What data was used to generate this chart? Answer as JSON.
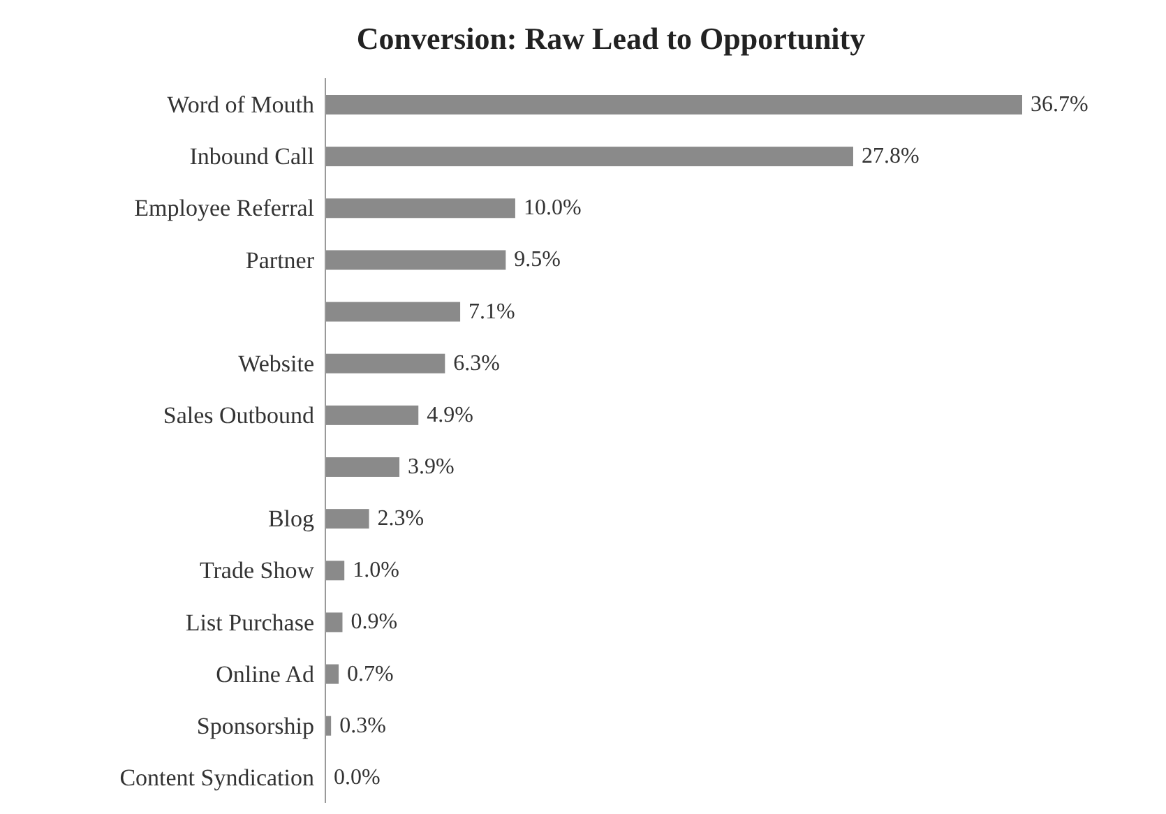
{
  "chart_data": {
    "type": "bar",
    "orientation": "horizontal",
    "title": "Conversion: Raw Lead to Opportunity",
    "categories": [
      "Word of Mouth",
      "Inbound Call",
      "Employee Referral",
      "Partner",
      null,
      "Website",
      "Sales Outbound",
      null,
      "Blog",
      "Trade Show",
      "List Purchase",
      "Online Ad",
      "Sponsorship",
      "Content Syndication"
    ],
    "values": [
      36.7,
      27.8,
      10.0,
      9.5,
      7.1,
      6.3,
      4.9,
      3.9,
      2.3,
      1.0,
      0.9,
      0.7,
      0.3,
      0.0
    ],
    "value_labels": [
      "36.7%",
      "27.8%",
      "10.0%",
      "9.5%",
      "7.1%",
      "6.3%",
      "4.9%",
      "3.9%",
      "2.3%",
      "1.0%",
      "0.9%",
      "0.7%",
      "0.3%",
      "0.0%"
    ],
    "color": "#8a8a8a",
    "grid": false,
    "legend": false
  }
}
